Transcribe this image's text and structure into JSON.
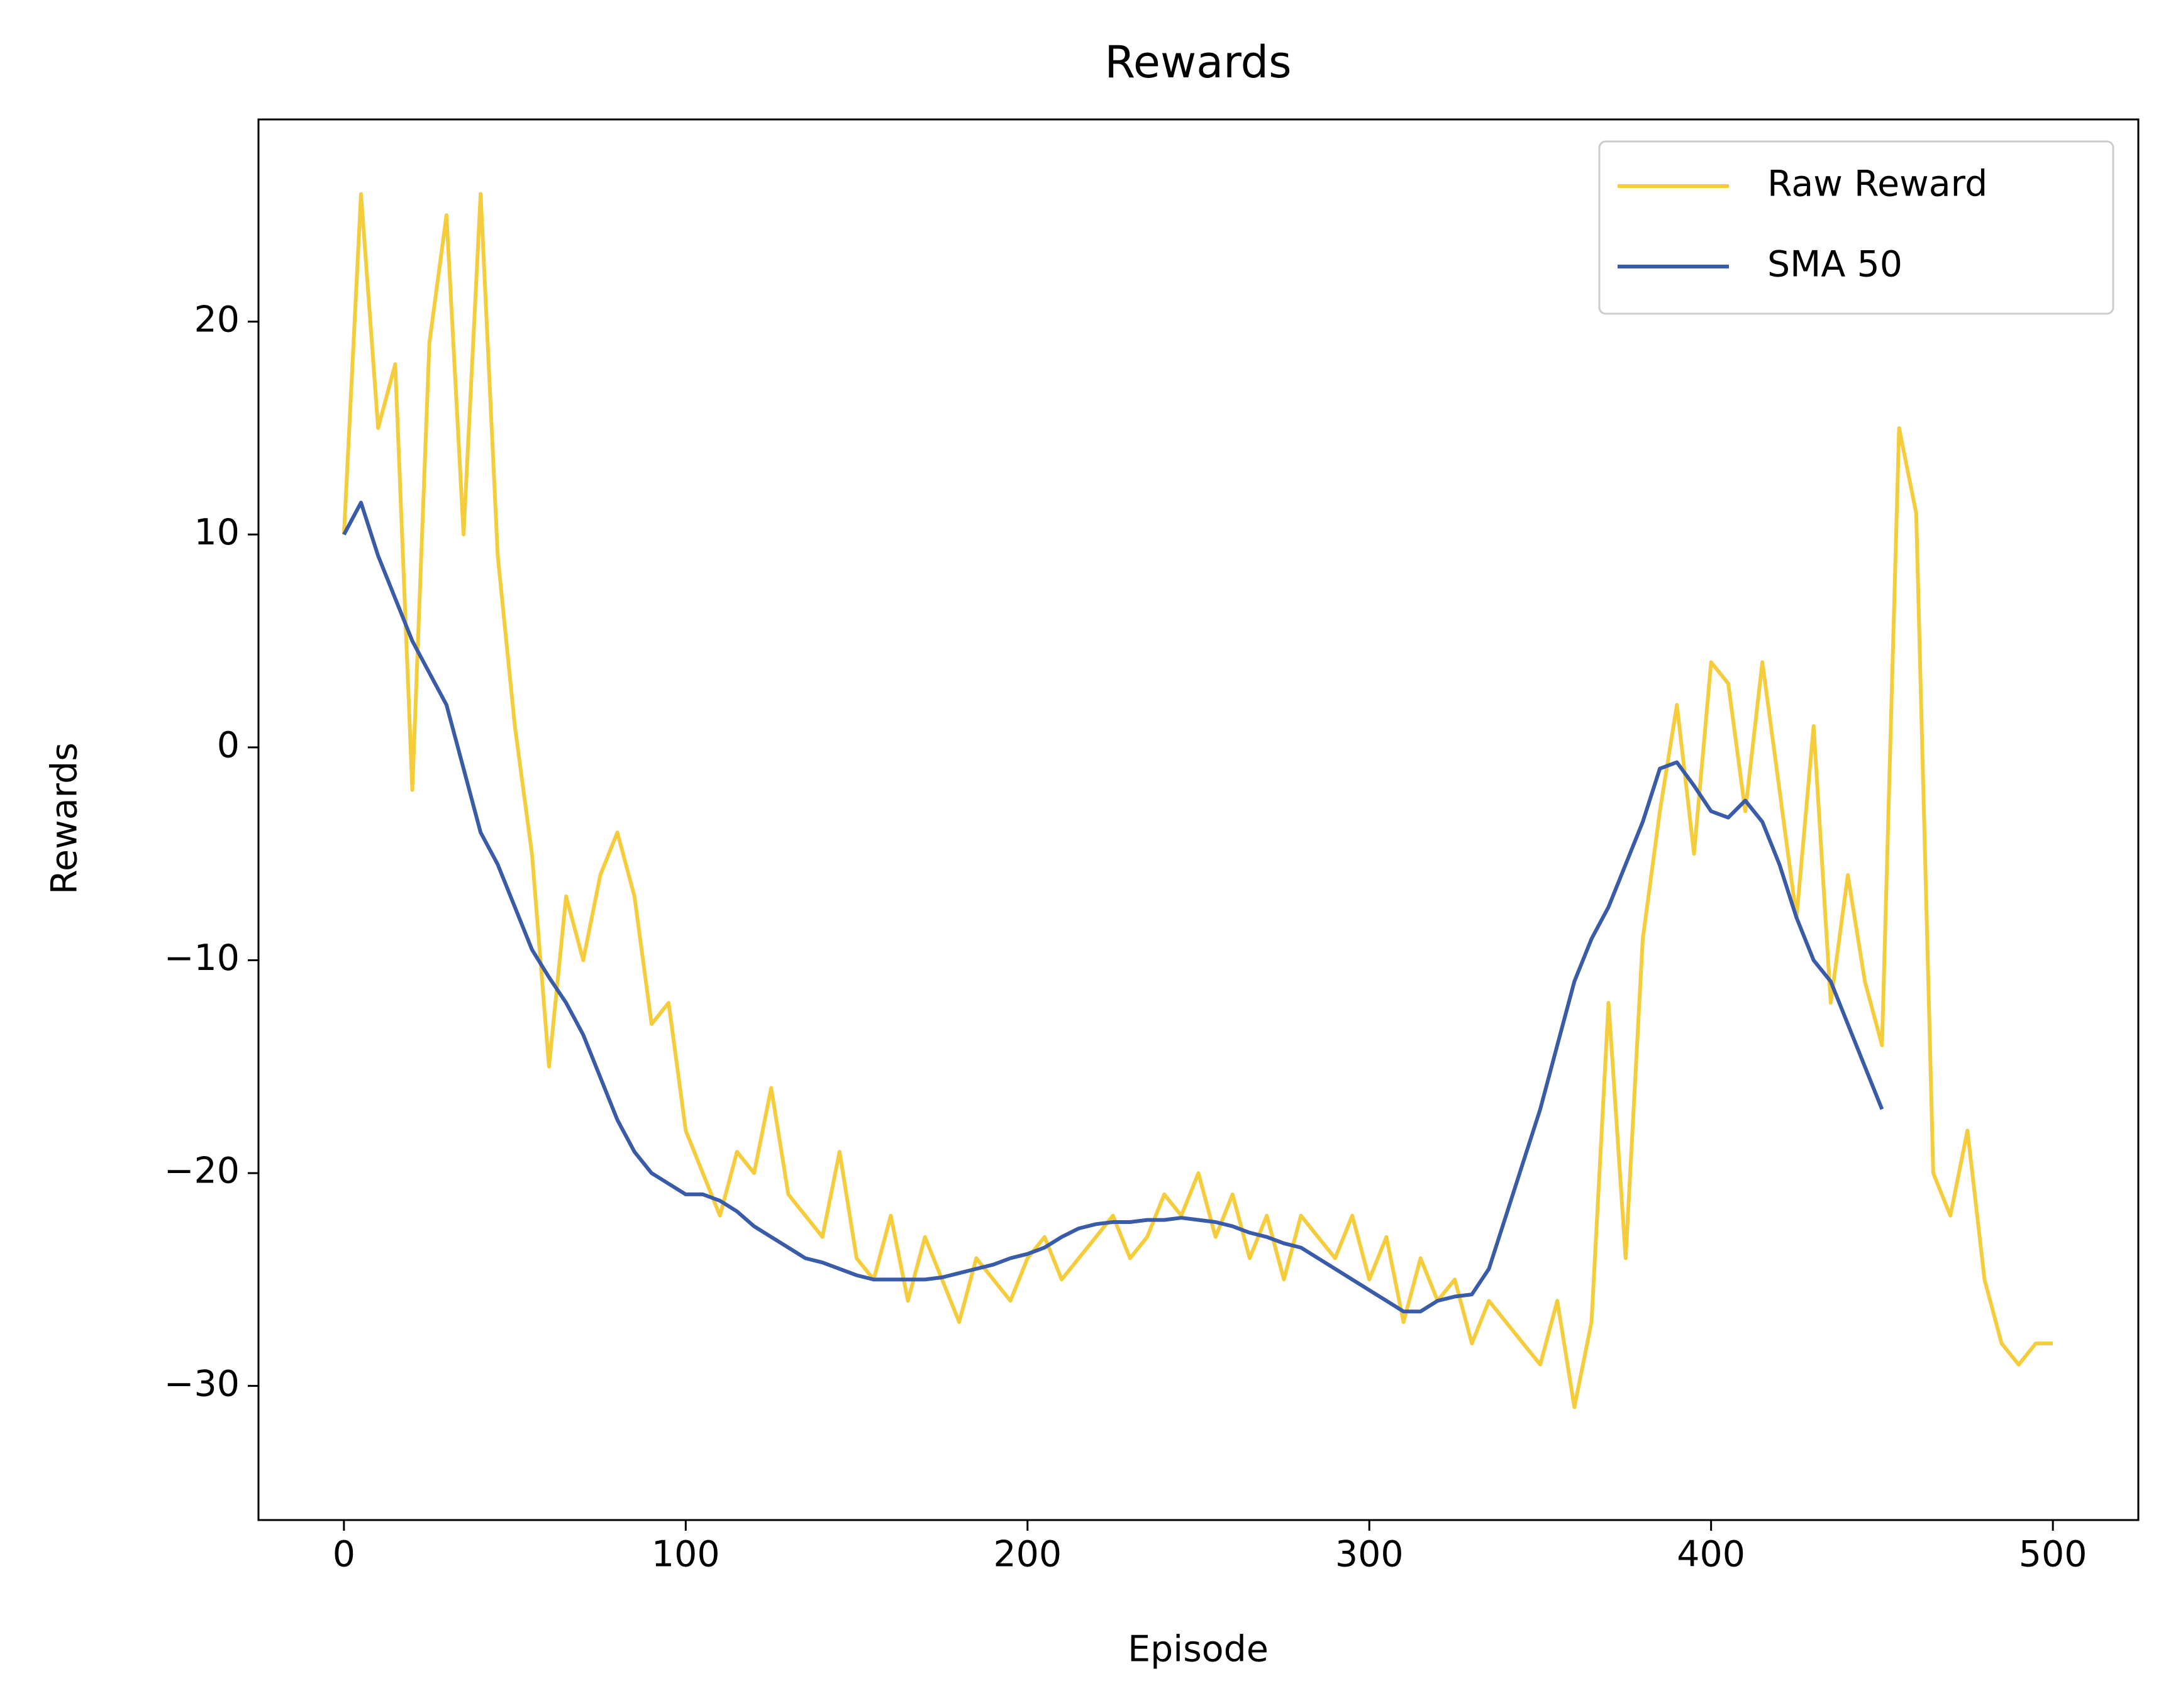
{
  "chart_data": {
    "type": "line",
    "title": "Rewards",
    "x_label": "Episode",
    "y_label": "Rewards",
    "xlim": [
      -25,
      525
    ],
    "ylim": [
      -36.3,
      29.5
    ],
    "xticks": [
      0,
      100,
      200,
      300,
      400,
      500
    ],
    "yticks": [
      {
        "value": -30,
        "label": "−30"
      },
      {
        "value": -20,
        "label": "−20"
      },
      {
        "value": -10,
        "label": "−10"
      },
      0,
      10,
      20
    ],
    "legend": "upper right",
    "grid": false,
    "series": [
      {
        "name": "Raw Reward",
        "color": "#f5cc3c",
        "x": [
          0,
          5,
          10,
          15,
          20,
          25,
          30,
          35,
          40,
          45,
          50,
          55,
          60,
          65,
          70,
          75,
          80,
          85,
          90,
          95,
          100,
          105,
          110,
          115,
          120,
          125,
          130,
          135,
          140,
          145,
          150,
          155,
          160,
          165,
          170,
          175,
          180,
          185,
          190,
          195,
          200,
          205,
          210,
          215,
          220,
          225,
          230,
          235,
          240,
          245,
          250,
          255,
          260,
          265,
          270,
          275,
          280,
          285,
          290,
          295,
          300,
          305,
          310,
          315,
          320,
          325,
          330,
          335,
          340,
          345,
          350,
          355,
          360,
          365,
          370,
          375,
          380,
          385,
          390,
          395,
          400,
          405,
          410,
          415,
          420,
          425,
          430,
          435,
          440,
          445,
          450,
          455,
          460,
          465,
          470,
          475,
          480,
          485,
          490,
          495,
          500
        ],
        "values": [
          10,
          26,
          15,
          18,
          -2,
          19,
          25,
          10,
          26,
          9,
          1,
          -5,
          -15,
          -7,
          -10,
          -6,
          -4,
          -7,
          -13,
          -12,
          -18,
          -20,
          -22,
          -19,
          -20,
          -16,
          -21,
          -22,
          -23,
          -19,
          -24,
          -25,
          -22,
          -26,
          -23,
          -25,
          -27,
          -24,
          -25,
          -26,
          -24,
          -23,
          -25,
          -24,
          -23,
          -22,
          -24,
          -23,
          -21,
          -22,
          -20,
          -23,
          -21,
          -24,
          -22,
          -25,
          -22,
          -23,
          -24,
          -22,
          -25,
          -23,
          -27,
          -24,
          -26,
          -25,
          -28,
          -26,
          -27,
          -28,
          -29,
          -26,
          -31,
          -27,
          -12,
          -24,
          -9,
          -3,
          2,
          -5,
          4,
          3,
          -3,
          4,
          -2,
          -8,
          1,
          -12,
          -6,
          -11,
          -14,
          15,
          11,
          -20,
          -22,
          -18,
          -25,
          -28,
          -29,
          -28,
          -28
        ]
      },
      {
        "name": "SMA 50",
        "color": "#3a5ba8",
        "x": [
          0,
          5,
          10,
          15,
          20,
          25,
          30,
          35,
          40,
          45,
          50,
          55,
          60,
          65,
          70,
          75,
          80,
          85,
          90,
          95,
          100,
          105,
          110,
          115,
          120,
          125,
          130,
          135,
          140,
          145,
          150,
          155,
          160,
          165,
          170,
          175,
          180,
          185,
          190,
          195,
          200,
          205,
          210,
          215,
          220,
          225,
          230,
          235,
          240,
          245,
          250,
          255,
          260,
          265,
          270,
          275,
          280,
          285,
          290,
          295,
          300,
          305,
          310,
          315,
          320,
          325,
          330,
          335,
          340,
          345,
          350,
          355,
          360,
          365,
          370,
          375,
          380,
          385,
          390,
          395,
          400,
          405,
          410,
          415,
          420,
          425,
          430,
          435,
          440,
          445,
          450
        ],
        "values": [
          10,
          11.5,
          9,
          7,
          5,
          3.5,
          2,
          -1,
          -4,
          -5.5,
          -7.5,
          -9.5,
          -10.8,
          -12,
          -13.5,
          -15.5,
          -17.5,
          -19,
          -20,
          -20.5,
          -21,
          -21,
          -21.3,
          -21.8,
          -22.5,
          -23,
          -23.5,
          -24,
          -24.2,
          -24.5,
          -24.8,
          -25,
          -25,
          -25,
          -25,
          -24.9,
          -24.7,
          -24.5,
          -24.3,
          -24,
          -23.8,
          -23.5,
          -23,
          -22.6,
          -22.4,
          -22.3,
          -22.3,
          -22.2,
          -22.2,
          -22.1,
          -22.2,
          -22.3,
          -22.5,
          -22.8,
          -23,
          -23.3,
          -23.5,
          -24,
          -24.5,
          -25,
          -25.5,
          -26,
          -26.5,
          -26.5,
          -26,
          -25.8,
          -25.7,
          -24.5,
          -22,
          -19.5,
          -17,
          -14,
          -11,
          -9,
          -7.5,
          -5.5,
          -3.5,
          -1,
          -0.7,
          -1.8,
          -3,
          -3.3,
          -2.5,
          -3.5,
          -5.5,
          -8,
          -10,
          -11,
          -13,
          -15,
          -17
        ]
      }
    ]
  }
}
